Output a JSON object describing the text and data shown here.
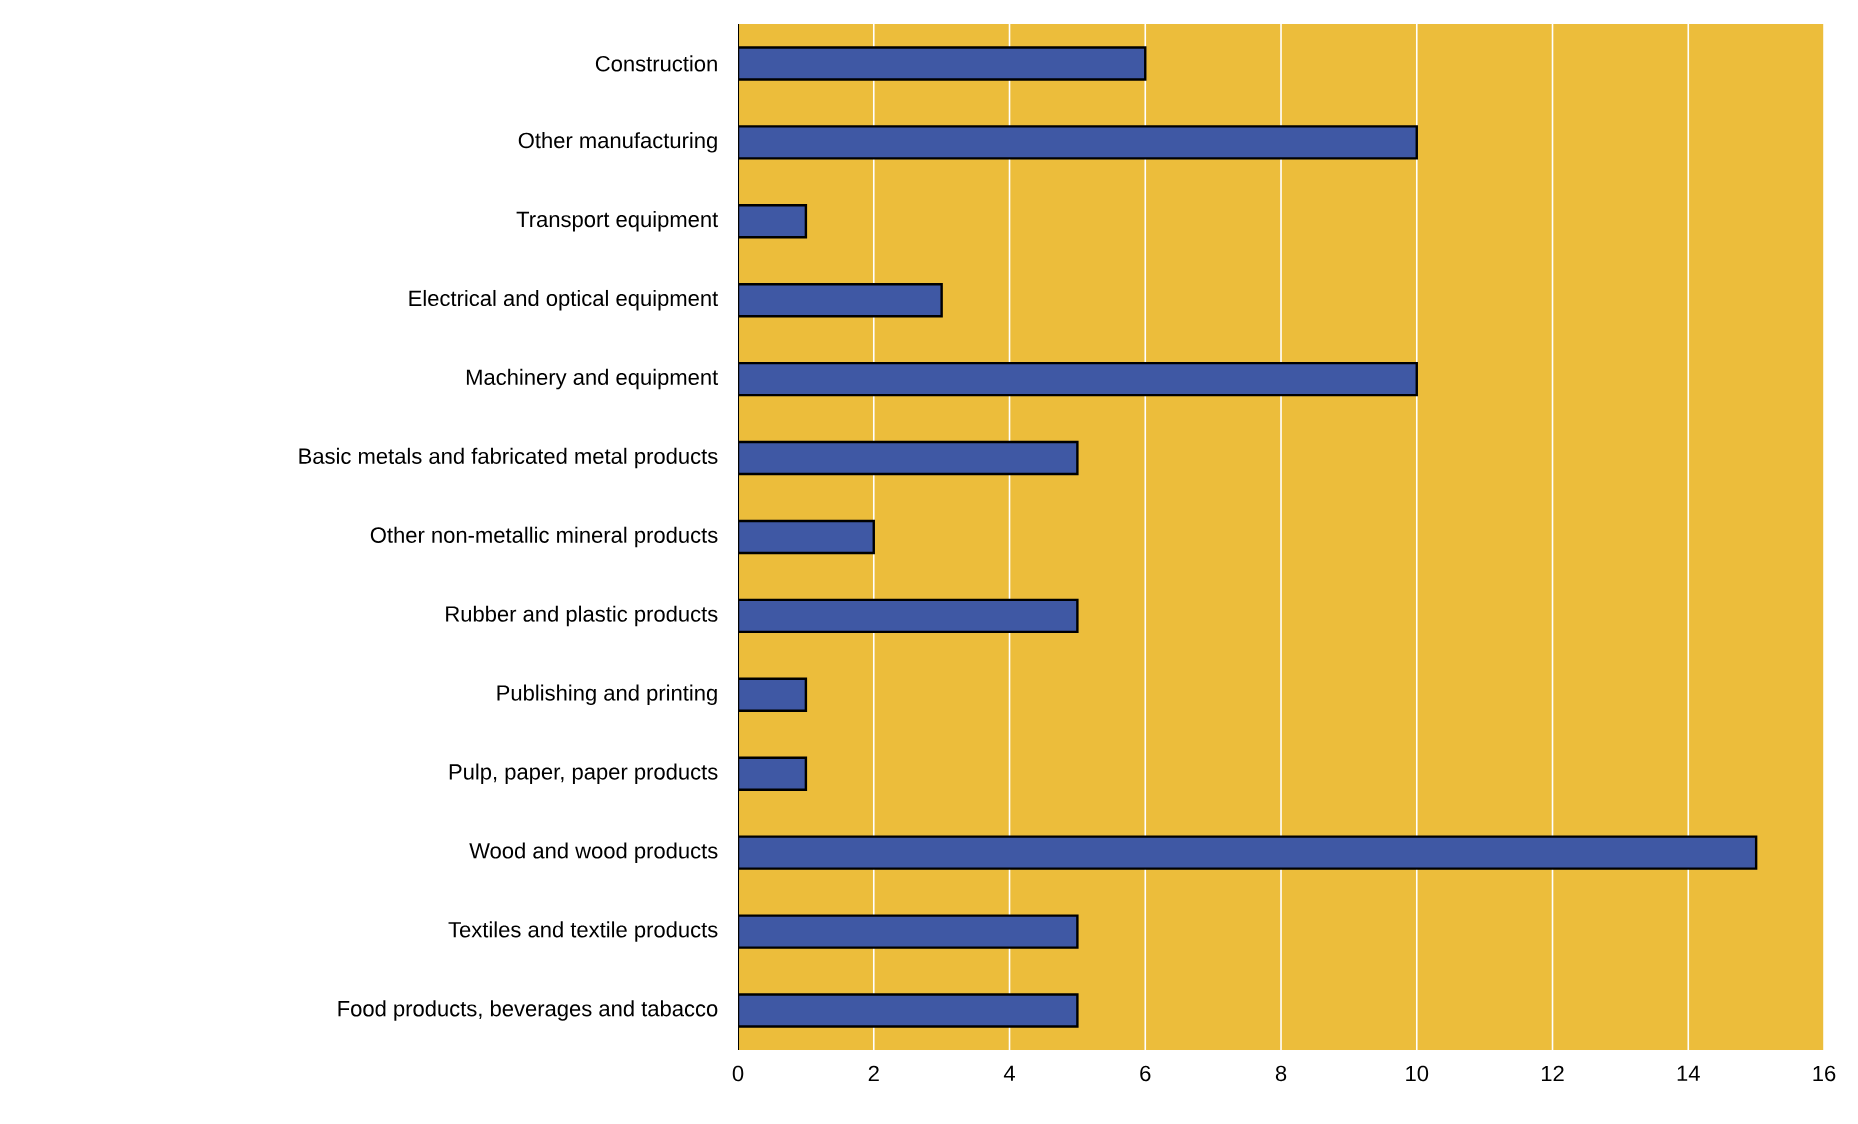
{
  "chart_data": {
    "type": "bar",
    "orientation": "horizontal",
    "categories": [
      "Construction",
      "Other manufacturing",
      "Transport equipment",
      "Electrical and optical equipment",
      "Machinery and equipment",
      "Basic metals and fabricated metal products",
      "Other non-metallic mineral products",
      "Rubber and plastic products",
      "Publishing and printing",
      "Pulp, paper, paper products",
      "Wood and wood products",
      "Textiles and textile products",
      "Food products, beverages and tabacco"
    ],
    "values": [
      6,
      10,
      1,
      3,
      10,
      5,
      2,
      5,
      1,
      1,
      15,
      5,
      5
    ],
    "color": "#3f58a4",
    "xlim": [
      0,
      16
    ],
    "xticks": [
      0,
      2,
      4,
      6,
      8,
      10,
      12,
      14,
      16
    ],
    "grid": "x"
  }
}
